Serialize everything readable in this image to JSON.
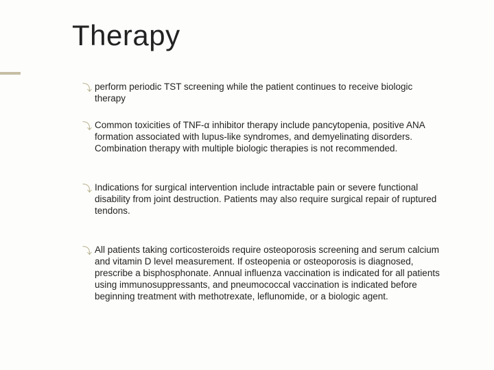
{
  "slide": {
    "title": "Therapy",
    "background_color": "#fdfdfb",
    "accent_color": "#c6bfa4",
    "title_fontsize": 42,
    "body_fontsize": 13.5,
    "body_lineheight": 17,
    "text_color": "#222222",
    "bullet_glyph_color": "#b9b18f",
    "bullet_glyph": "⤵",
    "bullets": [
      {
        "text": "perform periodic TST screening while the patient continues to receive biologic therapy",
        "gap_after": "sm"
      },
      {
        "text": "Common toxicities of TNF-α inhibitor therapy include pancytopenia, positive ANA formation associated with lupus-like syndromes, and demyelinating disorders. Combination therapy with multiple biologic therapies is not recommended.",
        "gap_after": "lg"
      },
      {
        "text": "Indications for surgical intervention include intractable pain or severe functional disability from joint destruction. Patients may also require surgical repair of ruptured tendons.",
        "gap_after": "lg"
      },
      {
        "text": "All patients taking corticosteroids require osteoporosis screening and serum calcium and vitamin D level measurement. If osteopenia or osteoporosis is diagnosed, prescribe a bisphosphonate. Annual influenza vaccination is indicated for all patients using immunosuppressants, and pneumococcal vaccination is indicated before beginning treatment with methotrexate, leflunomide, or a biologic agent.",
        "gap_after": "sm"
      }
    ]
  }
}
